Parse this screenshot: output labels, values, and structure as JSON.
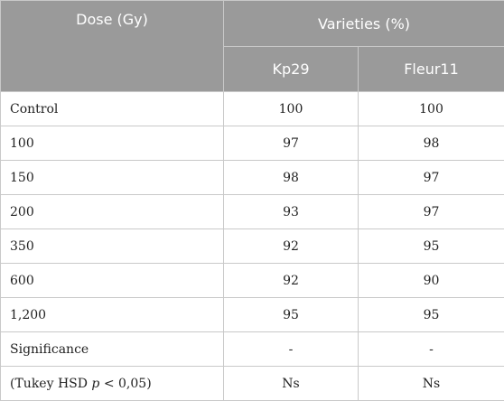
{
  "header": {
    "dose_label": "Dose (Gy)",
    "varieties_label": "Varieties (%)",
    "col_kp29": "Kp29",
    "col_fleur11": "Fleur11"
  },
  "rows": [
    {
      "dose": "Control",
      "kp29": "100",
      "fleur11": "100"
    },
    {
      "dose": "100",
      "kp29": "97",
      "fleur11": "98"
    },
    {
      "dose": "150",
      "kp29": "98",
      "fleur11": "97"
    },
    {
      "dose": "200",
      "kp29": "93",
      "fleur11": "97"
    },
    {
      "dose": "350",
      "kp29": "92",
      "fleur11": "95"
    },
    {
      "dose": "600",
      "kp29": "92",
      "fleur11": "90"
    },
    {
      "dose": "1,200",
      "kp29": "95",
      "fleur11": "95"
    },
    {
      "dose": "Significance",
      "kp29": "-",
      "fleur11": "-"
    }
  ],
  "tukey_row": {
    "prefix": "(Tukey HSD ",
    "p": "p",
    "suffix": " < 0,05)",
    "kp29": "Ns",
    "fleur11": "Ns"
  }
}
